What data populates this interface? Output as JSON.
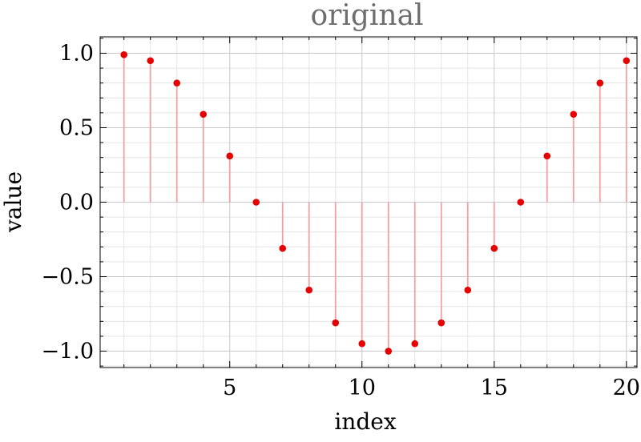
{
  "chart_data": {
    "type": "scatter",
    "title": "original",
    "xlabel": "index",
    "ylabel": "value",
    "xlim": [
      0.1,
      20.4
    ],
    "ylim": [
      -1.11,
      1.11
    ],
    "x_ticks": [
      5,
      10,
      15,
      20
    ],
    "y_ticks": [
      -1.0,
      -0.5,
      0.0,
      0.5,
      1.0
    ],
    "y_tick_labels": [
      "−1.0",
      "−0.5",
      "0.0",
      "0.5",
      "1.0"
    ],
    "grid": true,
    "point_color": "#e60000",
    "stem_color": "#f4a0a0",
    "series": [
      {
        "x": [
          1,
          2,
          3,
          4,
          5,
          6,
          7,
          8,
          9,
          10,
          11,
          12,
          13,
          14,
          15,
          16,
          17,
          18,
          19,
          20
        ],
        "values": [
          0.99,
          0.95,
          0.8,
          0.59,
          0.31,
          0.0,
          -0.31,
          -0.59,
          -0.81,
          -0.95,
          -1.0,
          -0.95,
          -0.81,
          -0.59,
          -0.31,
          0.0,
          0.31,
          0.59,
          0.8,
          0.95
        ]
      }
    ]
  }
}
